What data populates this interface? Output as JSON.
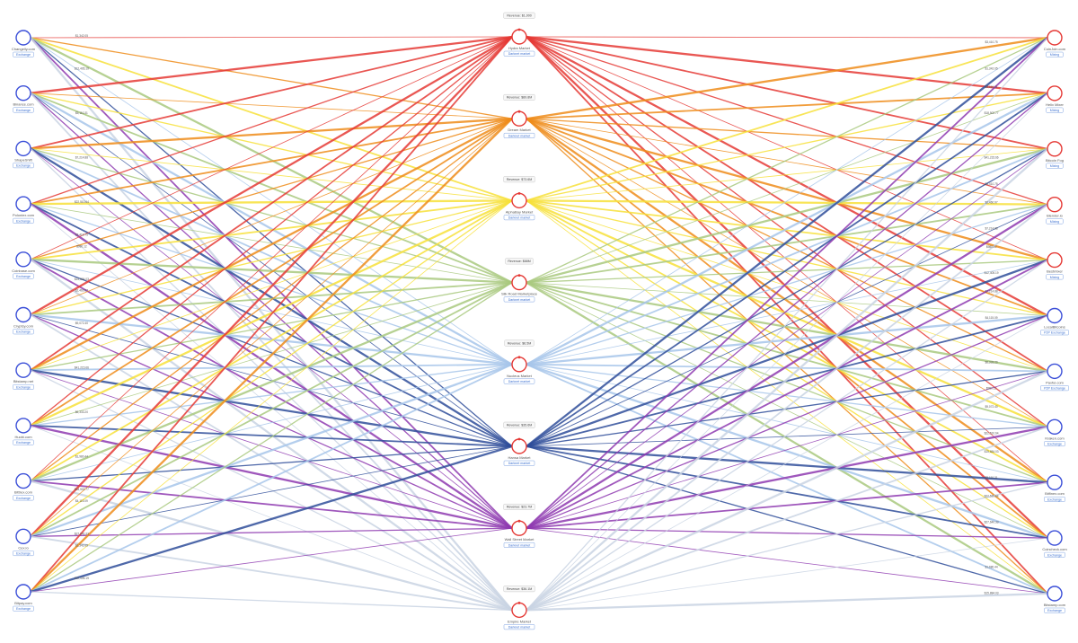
{
  "left_nodes": [
    {
      "name": "Changelly.com",
      "tag": "Exchange",
      "color": "#3b4fd8"
    },
    {
      "name": "Binance.com",
      "tag": "Exchange",
      "color": "#3b4fd8"
    },
    {
      "name": "ShapeShift",
      "tag": "Exchange",
      "color": "#3b4fd8"
    },
    {
      "name": "Poloniex.com",
      "tag": "Exchange",
      "color": "#3b4fd8"
    },
    {
      "name": "Coinbase.com",
      "tag": "Exchange",
      "color": "#3b4fd8"
    },
    {
      "name": "Cryptsy.com",
      "tag": "Exchange",
      "color": "#3b4fd8"
    },
    {
      "name": "Bitstamp.net",
      "tag": "Exchange",
      "color": "#3b4fd8"
    },
    {
      "name": "Huobi.com",
      "tag": "Exchange",
      "color": "#3b4fd8"
    },
    {
      "name": "Bittrex.com",
      "tag": "Exchange",
      "color": "#3b4fd8"
    },
    {
      "name": "Cex.io",
      "tag": "Exchange",
      "color": "#3b4fd8"
    },
    {
      "name": "Bitpay.com",
      "tag": "Exchange",
      "color": "#3b4fd8"
    }
  ],
  "middle_nodes": [
    {
      "name": "Hydra Market",
      "tag": "Darknet market",
      "revenue": "Revenue: $1,000",
      "color": "#e53935"
    },
    {
      "name": "Dream Market",
      "tag": "Darknet market",
      "revenue": "Revenue: $89.8M",
      "color": "#e53935"
    },
    {
      "name": "AlphaBay Market",
      "tag": "Darknet market",
      "revenue": "Revenue: $73.6M",
      "color": "#e53935"
    },
    {
      "name": "Silk Road Marketplace",
      "tag": "Darknet market",
      "revenue": "Revenue: $88M",
      "color": "#e53935"
    },
    {
      "name": "Nucleus Market",
      "tag": "Darknet market",
      "revenue": "Revenue: $6.5M",
      "color": "#e53935"
    },
    {
      "name": "Hansa Market",
      "tag": "Darknet market",
      "revenue": "Revenue: $35.6M",
      "color": "#e53935"
    },
    {
      "name": "Wall Street Market",
      "tag": "Darknet market",
      "revenue": "Revenue: $23.7M",
      "color": "#e53935"
    },
    {
      "name": "Empire Market",
      "tag": "Darknet market",
      "revenue": "Revenue: $36.1M",
      "color": "#e53935"
    }
  ],
  "right_nodes": [
    {
      "name": "CoinJoin.com",
      "tag": "Mixing",
      "color": "#e53935"
    },
    {
      "name": "Helix Mixer",
      "tag": "Mixing",
      "color": "#e53935"
    },
    {
      "name": "Bitcoin Fog",
      "tag": "Mixing",
      "color": "#e53935"
    },
    {
      "name": "Blender.io",
      "tag": "Mixing",
      "color": "#e53935"
    },
    {
      "name": "Bestmixer",
      "tag": "Mixing",
      "color": "#e53935"
    },
    {
      "name": "LocalBitcoins",
      "tag": "P2P Exchange",
      "color": "#3b4fd8"
    },
    {
      "name": "Paxful.com",
      "tag": "P2P Exchange",
      "color": "#3b4fd8"
    },
    {
      "name": "Kraken.com",
      "tag": "Exchange",
      "color": "#3b4fd8"
    },
    {
      "name": "Bitfinex.com",
      "tag": "Exchange",
      "color": "#3b4fd8"
    },
    {
      "name": "Coincheck.com",
      "tag": "Exchange",
      "color": "#3b4fd8"
    },
    {
      "name": "Bitstamp.com",
      "tag": "Exchange",
      "color": "#3b4fd8"
    }
  ],
  "flow_colors": [
    "#e53935",
    "#ef8c1a",
    "#f7e03a",
    "#a9c97f",
    "#a7c5ea",
    "#2f4d9a",
    "#8e3ab0",
    "#c9d3e3"
  ],
  "amount_labels": [
    "$1,342.05",
    "$12,405.19",
    "$5,110.31",
    "$7,214.88",
    "$22,510.64",
    "$3,410.75",
    "$980.12",
    "$15,884.03",
    "$2,460.97",
    "$9,072.40",
    "$41,215.66",
    "$6,333.20",
    "$1,980.44",
    "$18,502.77",
    "$4,115.09",
    "$27,640.33"
  ]
}
